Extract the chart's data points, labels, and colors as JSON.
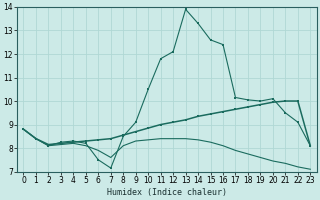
{
  "xlabel": "Humidex (Indice chaleur)",
  "bg_color": "#cceae7",
  "line_color": "#1a6b5e",
  "grid_color": "#b0d8d4",
  "xlim": [
    -0.5,
    23.5
  ],
  "ylim": [
    7,
    14
  ],
  "xticks": [
    0,
    1,
    2,
    3,
    4,
    5,
    6,
    7,
    8,
    9,
    10,
    11,
    12,
    13,
    14,
    15,
    16,
    17,
    18,
    19,
    20,
    21,
    22,
    23
  ],
  "yticks": [
    7,
    8,
    9,
    10,
    11,
    12,
    13,
    14
  ],
  "line1_x": [
    0,
    1,
    2,
    3,
    4,
    5,
    6,
    7,
    8,
    9,
    10,
    11,
    12,
    13,
    14,
    15,
    16,
    17,
    18,
    19,
    20,
    21,
    22,
    23
  ],
  "line1_y": [
    8.8,
    8.4,
    8.1,
    8.25,
    8.3,
    8.2,
    7.5,
    7.15,
    8.5,
    9.1,
    10.5,
    11.8,
    12.1,
    13.9,
    13.3,
    12.6,
    12.4,
    10.15,
    10.05,
    10.0,
    10.1,
    9.5,
    9.1,
    8.1
  ],
  "line2_x": [
    0,
    1,
    2,
    3,
    4,
    5,
    6,
    7,
    8,
    9,
    10,
    11,
    12,
    13,
    14,
    15,
    16,
    17,
    18,
    19,
    20,
    21,
    22,
    23
  ],
  "line2_y": [
    8.8,
    8.4,
    8.15,
    8.2,
    8.25,
    8.3,
    8.35,
    8.4,
    8.55,
    8.7,
    8.85,
    9.0,
    9.1,
    9.2,
    9.35,
    9.45,
    9.55,
    9.65,
    9.75,
    9.85,
    9.95,
    10.0,
    10.0,
    8.1
  ],
  "line3_x": [
    0,
    1,
    2,
    3,
    4,
    5,
    6,
    7,
    8,
    9,
    10,
    11,
    12,
    13,
    14,
    15,
    16,
    17,
    18,
    19,
    20,
    21,
    22,
    23
  ],
  "line3_y": [
    8.8,
    8.4,
    8.1,
    8.15,
    8.2,
    8.1,
    7.9,
    7.6,
    8.1,
    8.3,
    8.35,
    8.4,
    8.4,
    8.4,
    8.35,
    8.25,
    8.1,
    7.9,
    7.75,
    7.6,
    7.45,
    7.35,
    7.2,
    7.1
  ]
}
